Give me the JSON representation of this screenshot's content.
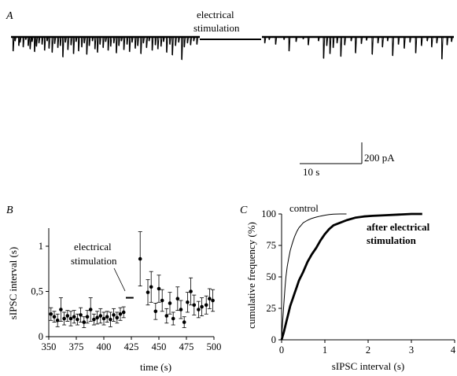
{
  "panels": {
    "A": {
      "letter": "A",
      "stim_label_line1": "electrical",
      "stim_label_line2": "stimulation",
      "scale_y_label": "200 pA",
      "scale_x_label": "10 s"
    },
    "B": {
      "letter": "B",
      "stim_label_line1": "electrical",
      "stim_label_line2": "stimulation"
    },
    "C": {
      "letter": "C",
      "control_label": "control",
      "after_label_line1": "after electrical",
      "after_label_line2": "stimulation"
    }
  },
  "chart_data": [
    {
      "panel": "A",
      "type": "line",
      "description_units": "current trace (pA) vs time (s)",
      "scale_bar": {
        "current_pA": 200,
        "time_s": 10
      },
      "segments": [
        {
          "name": "before",
          "duration_s": 30,
          "events": [
            {
              "t": 0.3,
              "a": 210
            },
            {
              "t": 0.6,
              "a": 60
            },
            {
              "t": 1.2,
              "a": 130
            },
            {
              "t": 1.4,
              "a": 80
            },
            {
              "t": 1.9,
              "a": 150
            },
            {
              "t": 2.3,
              "a": 40
            },
            {
              "t": 2.7,
              "a": 130
            },
            {
              "t": 3.0,
              "a": 180
            },
            {
              "t": 3.3,
              "a": 70
            },
            {
              "t": 3.7,
              "a": 220
            },
            {
              "t": 4.0,
              "a": 140
            },
            {
              "t": 4.4,
              "a": 90
            },
            {
              "t": 4.9,
              "a": 110
            },
            {
              "t": 5.3,
              "a": 200
            },
            {
              "t": 5.7,
              "a": 60
            },
            {
              "t": 6.0,
              "a": 170
            },
            {
              "t": 6.5,
              "a": 230
            },
            {
              "t": 6.9,
              "a": 100
            },
            {
              "t": 7.4,
              "a": 160
            },
            {
              "t": 7.8,
              "a": 130
            },
            {
              "t": 8.2,
              "a": 300
            },
            {
              "t": 8.6,
              "a": 80
            },
            {
              "t": 9.0,
              "a": 190
            },
            {
              "t": 9.5,
              "a": 120
            },
            {
              "t": 9.9,
              "a": 250
            },
            {
              "t": 10.3,
              "a": 70
            },
            {
              "t": 10.7,
              "a": 210
            },
            {
              "t": 11.2,
              "a": 150
            },
            {
              "t": 11.6,
              "a": 90
            },
            {
              "t": 12.0,
              "a": 260
            },
            {
              "t": 12.4,
              "a": 130
            },
            {
              "t": 12.9,
              "a": 60
            },
            {
              "t": 13.3,
              "a": 180
            },
            {
              "t": 13.7,
              "a": 230
            },
            {
              "t": 14.1,
              "a": 110
            },
            {
              "t": 14.6,
              "a": 160
            },
            {
              "t": 15.0,
              "a": 70
            },
            {
              "t": 15.4,
              "a": 200
            },
            {
              "t": 15.8,
              "a": 140
            },
            {
              "t": 16.3,
              "a": 90
            },
            {
              "t": 16.7,
              "a": 240
            },
            {
              "t": 17.1,
              "a": 130
            },
            {
              "t": 17.5,
              "a": 60
            },
            {
              "t": 17.9,
              "a": 190
            },
            {
              "t": 18.4,
              "a": 110
            },
            {
              "t": 18.8,
              "a": 220
            },
            {
              "t": 19.2,
              "a": 80
            },
            {
              "t": 19.7,
              "a": 170
            },
            {
              "t": 20.1,
              "a": 130
            },
            {
              "t": 20.6,
              "a": 250
            },
            {
              "t": 21.0,
              "a": 90
            },
            {
              "t": 21.5,
              "a": 160
            },
            {
              "t": 21.9,
              "a": 60
            },
            {
              "t": 22.4,
              "a": 200
            },
            {
              "t": 22.9,
              "a": 120
            },
            {
              "t": 23.3,
              "a": 180
            },
            {
              "t": 23.8,
              "a": 140
            },
            {
              "t": 24.2,
              "a": 70
            },
            {
              "t": 24.7,
              "a": 230
            },
            {
              "t": 25.2,
              "a": 110
            },
            {
              "t": 25.6,
              "a": 270
            },
            {
              "t": 26.1,
              "a": 130
            },
            {
              "t": 26.6,
              "a": 80
            },
            {
              "t": 27.1,
              "a": 340
            },
            {
              "t": 27.5,
              "a": 150
            },
            {
              "t": 28.0,
              "a": 90
            },
            {
              "t": 28.5,
              "a": 120
            },
            {
              "t": 29.0,
              "a": 60
            },
            {
              "t": 29.5,
              "a": 110
            }
          ]
        },
        {
          "name": "after",
          "duration_s": 30,
          "events": [
            {
              "t": 0.4,
              "a": 90
            },
            {
              "t": 1.1,
              "a": 40
            },
            {
              "t": 2.1,
              "a": 110
            },
            {
              "t": 3.4,
              "a": 40
            },
            {
              "t": 4.2,
              "a": 210
            },
            {
              "t": 5.3,
              "a": 70
            },
            {
              "t": 6.4,
              "a": 30
            },
            {
              "t": 7.2,
              "a": 120
            },
            {
              "t": 8.8,
              "a": 60
            },
            {
              "t": 9.6,
              "a": 320
            },
            {
              "t": 10.1,
              "a": 130
            },
            {
              "t": 10.6,
              "a": 250
            },
            {
              "t": 11.1,
              "a": 160
            },
            {
              "t": 11.7,
              "a": 90
            },
            {
              "t": 12.3,
              "a": 290
            },
            {
              "t": 12.9,
              "a": 120
            },
            {
              "t": 13.9,
              "a": 60
            },
            {
              "t": 14.6,
              "a": 240
            },
            {
              "t": 15.5,
              "a": 100
            },
            {
              "t": 16.3,
              "a": 50
            },
            {
              "t": 17.2,
              "a": 260
            },
            {
              "t": 18.1,
              "a": 90
            },
            {
              "t": 18.8,
              "a": 150
            },
            {
              "t": 19.6,
              "a": 60
            },
            {
              "t": 20.4,
              "a": 280
            },
            {
              "t": 21.3,
              "a": 110
            },
            {
              "t": 22.2,
              "a": 170
            },
            {
              "t": 23.1,
              "a": 80
            },
            {
              "t": 24.0,
              "a": 240
            },
            {
              "t": 24.9,
              "a": 130
            },
            {
              "t": 25.8,
              "a": 60
            },
            {
              "t": 26.5,
              "a": 150
            },
            {
              "t": 27.3,
              "a": 90
            },
            {
              "t": 28.1,
              "a": 330
            },
            {
              "t": 28.9,
              "a": 120
            },
            {
              "t": 29.6,
              "a": 70
            }
          ]
        }
      ]
    },
    {
      "panel": "B",
      "type": "scatter",
      "xlabel": "time (s)",
      "ylabel": "sIPSC interval (s)",
      "xlim": [
        350,
        500
      ],
      "ylim": [
        0,
        1.2
      ],
      "xticks": [
        350,
        375,
        400,
        425,
        450,
        475,
        500
      ],
      "yticks": [
        0,
        0.5,
        1
      ],
      "ytick_labels": [
        "0",
        "0,5",
        "1"
      ],
      "stim_marker": {
        "x": [
          420,
          427
        ],
        "y": 0.43
      },
      "points": [
        {
          "x": 352,
          "y": 0.25,
          "err": 0.07
        },
        {
          "x": 355,
          "y": 0.22,
          "err": 0.06
        },
        {
          "x": 358,
          "y": 0.18,
          "err": 0.07
        },
        {
          "x": 361,
          "y": 0.3,
          "err": 0.13
        },
        {
          "x": 364,
          "y": 0.2,
          "err": 0.07
        },
        {
          "x": 367,
          "y": 0.23,
          "err": 0.06
        },
        {
          "x": 370,
          "y": 0.2,
          "err": 0.08
        },
        {
          "x": 373,
          "y": 0.22,
          "err": 0.07
        },
        {
          "x": 376,
          "y": 0.19,
          "err": 0.06
        },
        {
          "x": 379,
          "y": 0.24,
          "err": 0.08
        },
        {
          "x": 382,
          "y": 0.16,
          "err": 0.06
        },
        {
          "x": 385,
          "y": 0.22,
          "err": 0.07
        },
        {
          "x": 388,
          "y": 0.3,
          "err": 0.13
        },
        {
          "x": 391,
          "y": 0.19,
          "err": 0.06
        },
        {
          "x": 394,
          "y": 0.21,
          "err": 0.07
        },
        {
          "x": 397,
          "y": 0.23,
          "err": 0.08
        },
        {
          "x": 400,
          "y": 0.2,
          "err": 0.07
        },
        {
          "x": 403,
          "y": 0.22,
          "err": 0.06
        },
        {
          "x": 406,
          "y": 0.19,
          "err": 0.08
        },
        {
          "x": 409,
          "y": 0.24,
          "err": 0.07
        },
        {
          "x": 412,
          "y": 0.21,
          "err": 0.06
        },
        {
          "x": 415,
          "y": 0.25,
          "err": 0.07
        },
        {
          "x": 418,
          "y": 0.27,
          "err": 0.06
        },
        {
          "x": 433,
          "y": 0.86,
          "err": 0.3
        },
        {
          "x": 440,
          "y": 0.49,
          "err": 0.14
        },
        {
          "x": 443,
          "y": 0.55,
          "err": 0.17
        },
        {
          "x": 447,
          "y": 0.28,
          "err": 0.09
        },
        {
          "x": 450,
          "y": 0.53,
          "err": 0.15
        },
        {
          "x": 453,
          "y": 0.4,
          "err": 0.12
        },
        {
          "x": 457,
          "y": 0.23,
          "err": 0.08
        },
        {
          "x": 460,
          "y": 0.37,
          "err": 0.12
        },
        {
          "x": 463,
          "y": 0.2,
          "err": 0.07
        },
        {
          "x": 467,
          "y": 0.42,
          "err": 0.13
        },
        {
          "x": 470,
          "y": 0.3,
          "err": 0.1
        },
        {
          "x": 473,
          "y": 0.16,
          "err": 0.06
        },
        {
          "x": 476,
          "y": 0.38,
          "err": 0.11
        },
        {
          "x": 479,
          "y": 0.5,
          "err": 0.15
        },
        {
          "x": 482,
          "y": 0.35,
          "err": 0.11
        },
        {
          "x": 486,
          "y": 0.3,
          "err": 0.09
        },
        {
          "x": 489,
          "y": 0.33,
          "err": 0.1
        },
        {
          "x": 493,
          "y": 0.35,
          "err": 0.1
        },
        {
          "x": 496,
          "y": 0.42,
          "err": 0.11
        },
        {
          "x": 499,
          "y": 0.4,
          "err": 0.12
        }
      ]
    },
    {
      "panel": "C",
      "type": "line",
      "xlabel": "sIPSC interval (s)",
      "ylabel": "cumulative frequency (%)",
      "xlim": [
        0,
        4
      ],
      "ylim": [
        0,
        100
      ],
      "xticks": [
        0,
        1,
        2,
        3,
        4
      ],
      "yticks": [
        0,
        25,
        50,
        75,
        100
      ],
      "series": [
        {
          "name": "control",
          "x": [
            0,
            0.02,
            0.05,
            0.08,
            0.1,
            0.13,
            0.16,
            0.2,
            0.25,
            0.3,
            0.35,
            0.4,
            0.45,
            0.5,
            0.6,
            0.7,
            0.8,
            0.9,
            1.0,
            1.1,
            1.2,
            1.35,
            1.5
          ],
          "y": [
            0,
            12,
            28,
            42,
            50,
            58,
            64,
            71,
            77,
            82,
            86,
            89,
            91,
            93,
            95,
            96.5,
            97.5,
            98.3,
            99,
            99.5,
            99.8,
            100,
            100
          ]
        },
        {
          "name": "after electrical stimulation",
          "x": [
            0,
            0.05,
            0.1,
            0.15,
            0.2,
            0.25,
            0.3,
            0.35,
            0.4,
            0.5,
            0.6,
            0.7,
            0.8,
            0.9,
            1.0,
            1.1,
            1.2,
            1.35,
            1.5,
            1.7,
            1.9,
            2.1,
            2.4,
            2.7,
            3.0,
            3.25
          ],
          "y": [
            0,
            6,
            13,
            20,
            27,
            32,
            37,
            42,
            47,
            54,
            62,
            68,
            73,
            79,
            84,
            88,
            91,
            93,
            95,
            97,
            98,
            98.5,
            99,
            99.5,
            100,
            100
          ]
        }
      ]
    }
  ]
}
